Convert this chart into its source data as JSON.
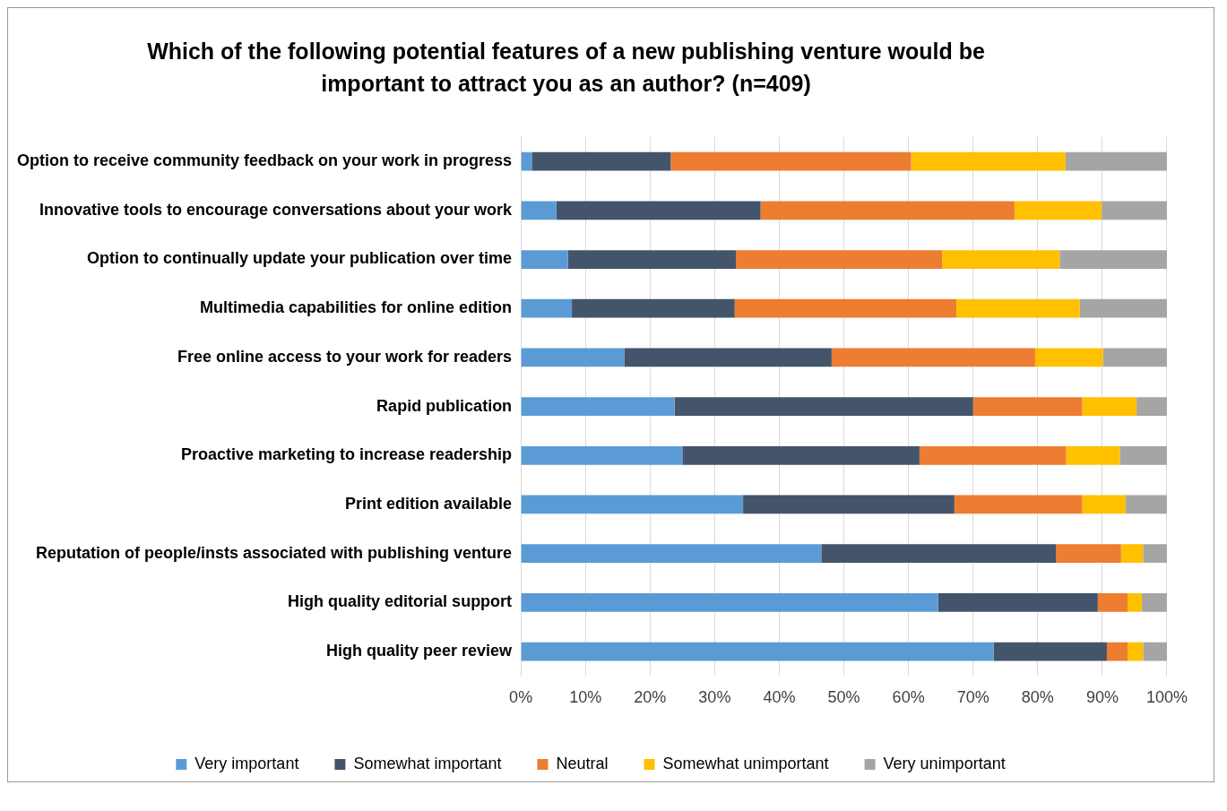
{
  "chart_data": {
    "type": "bar",
    "orientation": "horizontal",
    "stacked": true,
    "title": "Which of the following potential features of a new publishing venture would be important to attract you as an author?  (n=409)",
    "categories": [
      "Option to receive community feedback on your work in progress",
      "Innovative tools to encourage conversations about your work",
      "Option to continually update your publication over time",
      "Multimedia capabilities for online edition",
      "Free online access to your work for readers",
      "Rapid publication",
      "Proactive marketing to increase readership",
      "Print edition available",
      "Reputation of people/insts associated with publishing venture",
      "High quality editorial support",
      "High quality peer review"
    ],
    "series": [
      {
        "name": "Very important",
        "color": "#5b9bd5",
        "values": [
          1.7,
          5.5,
          7.3,
          7.9,
          16.0,
          23.8,
          25.0,
          34.4,
          46.5,
          64.6,
          73.2
        ]
      },
      {
        "name": "Somewhat important",
        "color": "#44546a",
        "values": [
          21.5,
          31.6,
          26.0,
          25.2,
          32.1,
          46.2,
          36.7,
          32.7,
          36.3,
          24.7,
          17.5
        ]
      },
      {
        "name": "Neutral",
        "color": "#ed7d31",
        "values": [
          37.2,
          39.3,
          31.9,
          34.3,
          31.5,
          16.9,
          22.7,
          19.8,
          10.1,
          4.6,
          3.2
        ]
      },
      {
        "name": "Somewhat unimportant",
        "color": "#ffc000",
        "values": [
          23.9,
          13.5,
          18.2,
          19.1,
          10.5,
          8.4,
          8.3,
          6.7,
          3.4,
          2.2,
          2.4
        ]
      },
      {
        "name": "Very unimportant",
        "color": "#a5a5a5",
        "values": [
          15.7,
          10.1,
          16.6,
          13.5,
          9.9,
          4.7,
          7.3,
          6.4,
          3.7,
          3.9,
          3.7
        ]
      }
    ],
    "xlim": [
      0,
      100
    ],
    "xticks": [
      {
        "value": 0,
        "label": "0%"
      },
      {
        "value": 10,
        "label": "10%"
      },
      {
        "value": 20,
        "label": "20%"
      },
      {
        "value": 30,
        "label": "30%"
      },
      {
        "value": 40,
        "label": "40%"
      },
      {
        "value": 50,
        "label": "50%"
      },
      {
        "value": 60,
        "label": "60%"
      },
      {
        "value": 70,
        "label": "70%"
      },
      {
        "value": 80,
        "label": "80%"
      },
      {
        "value": 90,
        "label": "90%"
      },
      {
        "value": 100,
        "label": "100%"
      }
    ],
    "grid": "x",
    "legend": "bottom"
  }
}
